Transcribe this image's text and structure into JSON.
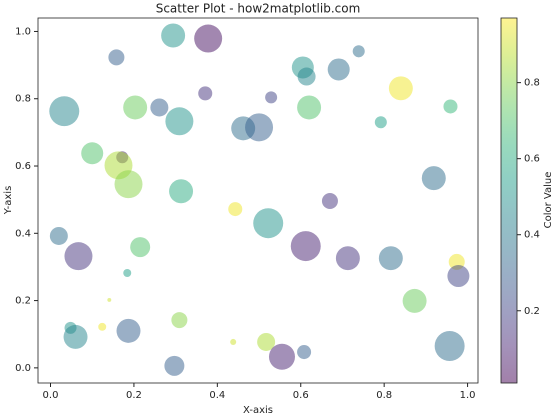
{
  "chart_data": {
    "type": "scatter",
    "title": "Scatter Plot - how2matplotlib.com",
    "x_label": "X-axis",
    "y_label": "Y-axis",
    "colorbar_label": "Color Value",
    "colormap": "viridis",
    "alpha": 0.5,
    "xlim": [
      -0.03,
      1.025
    ],
    "ylim": [
      -0.045,
      1.04
    ],
    "xticks": [
      {
        "value": 0,
        "label": "0.0"
      },
      0.2,
      0.4,
      0.6,
      0.8,
      {
        "value": 1,
        "label": "1.0"
      }
    ],
    "yticks": [
      {
        "value": 0,
        "label": "0.0"
      },
      0.2,
      0.4,
      0.6,
      0.8,
      {
        "value": 1,
        "label": "1.0"
      }
    ],
    "clim": [
      0.01,
      0.97
    ],
    "cticks": [
      0.2,
      0.4,
      0.6,
      0.8
    ],
    "x": [
      0.294,
      0.378,
      0.158,
      0.739,
      0.605,
      0.614,
      0.691,
      0.84,
      0.371,
      0.529,
      0.033,
      0.203,
      0.261,
      0.309,
      0.62,
      0.959,
      0.792,
      0.462,
      0.5,
      0.1,
      0.172,
      0.163,
      0.187,
      0.313,
      0.919,
      0.67,
      0.443,
      0.522,
      0.02,
      0.067,
      0.215,
      0.612,
      0.713,
      0.816,
      0.974,
      0.978,
      0.184,
      0.873,
      0.141,
      0.309,
      0.124,
      0.048,
      0.06,
      0.187,
      0.438,
      0.517,
      0.555,
      0.608,
      0.957,
      0.297
    ],
    "y": [
      0.988,
      0.979,
      0.923,
      0.941,
      0.893,
      0.866,
      0.887,
      0.831,
      0.816,
      0.804,
      0.763,
      0.774,
      0.774,
      0.733,
      0.774,
      0.777,
      0.73,
      0.712,
      0.715,
      0.638,
      0.626,
      0.602,
      0.546,
      0.525,
      0.564,
      0.496,
      0.472,
      0.43,
      0.392,
      0.332,
      0.359,
      0.362,
      0.326,
      0.326,
      0.315,
      0.273,
      0.282,
      0.199,
      0.202,
      0.142,
      0.122,
      0.119,
      0.092,
      0.11,
      0.077,
      0.077,
      0.033,
      0.047,
      0.065,
      0.006
    ],
    "sizes": [
      298,
      406,
      133,
      75,
      251,
      168,
      251,
      298,
      102,
      75,
      466,
      298,
      168,
      406,
      298,
      102,
      75,
      298,
      406,
      251,
      75,
      406,
      406,
      298,
      298,
      133,
      102,
      466,
      168,
      406,
      207,
      466,
      298,
      298,
      133,
      251,
      33,
      298,
      8,
      133,
      33,
      75,
      298,
      298,
      19,
      168,
      351,
      102,
      466,
      207
    ],
    "colors": [
      0.5,
      0.05,
      0.3,
      0.35,
      0.5,
      0.45,
      0.35,
      0.95,
      0.15,
      0.2,
      0.45,
      0.75,
      0.3,
      0.5,
      0.7,
      0.65,
      0.55,
      0.35,
      0.3,
      0.7,
      0.1,
      0.85,
      0.8,
      0.6,
      0.35,
      0.15,
      0.95,
      0.5,
      0.35,
      0.15,
      0.7,
      0.1,
      0.15,
      0.35,
      0.95,
      0.2,
      0.55,
      0.75,
      0.9,
      0.8,
      0.95,
      0.5,
      0.45,
      0.3,
      0.9,
      0.85,
      0.1,
      0.3,
      0.35,
      0.3
    ]
  }
}
